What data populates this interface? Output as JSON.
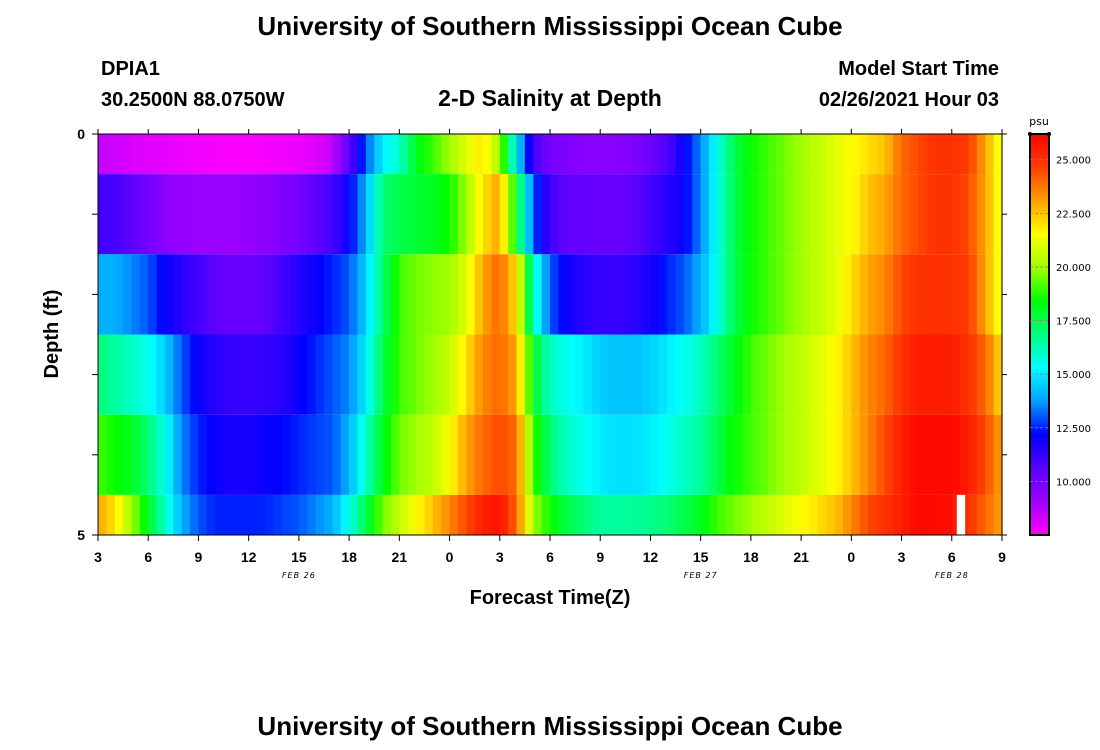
{
  "page": {
    "title": "University of Southern Mississippi Ocean Cube",
    "footer_title": "University of Southern Mississippi Ocean Cube",
    "station_id": "DPIA1",
    "station_coords": "30.2500N 88.0750W",
    "plot_title": "2-D Salinity at Depth",
    "model_start_label": "Model Start Time",
    "model_start_value": "02/26/2021 Hour 03"
  },
  "chart_data": {
    "type": "heatmap",
    "title": "2-D Salinity at Depth",
    "xlabel": "Forecast Time(Z)",
    "ylabel": "Depth (ft)",
    "x_ticks": [
      "3",
      "6",
      "9",
      "12",
      "15",
      "18",
      "21",
      "0",
      "3",
      "6",
      "9",
      "12",
      "15",
      "18",
      "21",
      "0",
      "3",
      "6",
      "9"
    ],
    "x_tick_hours": [
      0,
      3,
      6,
      9,
      12,
      15,
      18,
      21,
      24,
      27,
      30,
      33,
      36,
      39,
      42,
      45,
      48,
      51,
      54
    ],
    "xlim": [
      0,
      54
    ],
    "date_labels": [
      {
        "text": "FEB 26",
        "hour": 12
      },
      {
        "text": "FEB 27",
        "hour": 36
      },
      {
        "text": "FEB 28",
        "hour": 51
      }
    ],
    "y_ticks": [
      "0",
      "5"
    ],
    "ylim": [
      0,
      5
    ],
    "colorbar": {
      "unit": "psu",
      "min": 7.5,
      "max": 26.2,
      "ticks": [
        "25.000",
        "22.500",
        "20.000",
        "17.500",
        "15.000",
        "12.500",
        "10.000"
      ],
      "tick_values": [
        25,
        22.5,
        20,
        17.5,
        15,
        12.5,
        10
      ],
      "palette": [
        "#ff00ff",
        "#a000ff",
        "#5a00ff",
        "#0000ff",
        "#00a0ff",
        "#00ffff",
        "#00ff80",
        "#00ff00",
        "#a0ff00",
        "#ffff00",
        "#ffa000",
        "#ff4000",
        "#ff0000"
      ]
    },
    "key_hours": [
      0,
      1,
      2,
      3,
      4,
      5,
      6,
      7,
      8,
      9,
      10,
      11,
      12,
      13,
      14,
      15,
      16,
      17,
      18,
      19,
      20,
      21,
      22,
      23,
      24,
      25,
      26,
      27,
      28,
      29,
      30,
      31,
      32,
      33,
      34,
      35,
      36,
      37,
      38,
      39,
      40,
      41,
      42,
      43,
      44,
      45,
      46,
      47,
      48,
      49,
      50,
      51,
      52,
      53,
      54
    ],
    "layers": [
      {
        "depth_top": 0,
        "depth_bottom": 0.5,
        "values": [
          8.5,
          8.3,
          8.1,
          8.0,
          7.9,
          7.8,
          7.7,
          7.6,
          7.6,
          7.6,
          7.6,
          7.7,
          7.8,
          8.0,
          8.5,
          10.5,
          13,
          15,
          16,
          18,
          19,
          20,
          21,
          22,
          20,
          15,
          11,
          10,
          9.8,
          9.6,
          9.6,
          9.6,
          9.8,
          10.2,
          10.8,
          12,
          13.5,
          15.5,
          17.5,
          18.5,
          19,
          19.5,
          20,
          20.5,
          21,
          21.5,
          22,
          22.5,
          24,
          24.5,
          25,
          25,
          24.8,
          23,
          21
        ]
      },
      {
        "depth_top": 0.5,
        "depth_bottom": 1.5,
        "values": [
          11,
          11,
          10.5,
          10,
          9.5,
          9.3,
          9.2,
          9.2,
          9.2,
          9.3,
          9.5,
          9.8,
          10,
          10.5,
          11,
          12,
          14,
          17,
          17.5,
          17.8,
          18,
          18.5,
          20,
          22,
          23,
          18,
          13,
          11,
          10.5,
          10.4,
          10.3,
          10.3,
          10.5,
          11,
          11.5,
          12,
          13.5,
          15.5,
          17.5,
          18.5,
          19,
          19.5,
          20,
          20.5,
          21,
          21.5,
          22.5,
          23,
          24,
          24.5,
          25,
          25,
          24.5,
          23,
          21
        ]
      },
      {
        "depth_top": 1.5,
        "depth_bottom": 2.5,
        "values": [
          14,
          14,
          13.5,
          13,
          12,
          11.5,
          11,
          10.5,
          10.3,
          10.3,
          10.5,
          11,
          11.5,
          12,
          12.5,
          13,
          14.5,
          17,
          19,
          19.5,
          19.8,
          20,
          21,
          23,
          24,
          22,
          16,
          13,
          12,
          11.5,
          11.2,
          11.2,
          11.4,
          11.8,
          12.5,
          13,
          14,
          15.5,
          17.5,
          18.5,
          19,
          19.5,
          20,
          20.5,
          21,
          22,
          23,
          23.5,
          24.5,
          25,
          25,
          25,
          24.8,
          23,
          21
        ]
      },
      {
        "depth_top": 2.5,
        "depth_bottom": 3.5,
        "values": [
          17,
          16.5,
          16,
          15.5,
          14.5,
          13,
          12,
          11.5,
          11.2,
          11.2,
          11.3,
          11.5,
          12,
          12.5,
          13,
          13.5,
          15,
          17.5,
          19,
          19.5,
          20,
          20.5,
          22,
          23.5,
          24,
          23,
          18,
          16,
          15.5,
          15,
          14.5,
          14.3,
          14.3,
          14.5,
          15,
          15.5,
          16,
          17,
          18,
          19,
          19.5,
          20,
          20.5,
          21,
          21.5,
          22.5,
          23.5,
          24,
          25,
          25.5,
          25.5,
          25.5,
          25,
          24,
          22
        ]
      },
      {
        "depth_top": 3.5,
        "depth_bottom": 4.5,
        "values": [
          19,
          18.5,
          18,
          17,
          15.5,
          13.5,
          12.5,
          12,
          11.8,
          11.8,
          12,
          12.2,
          12.5,
          12.8,
          13,
          14,
          16,
          18,
          19.5,
          20,
          20.5,
          21.5,
          23,
          24,
          24.5,
          24,
          19,
          17,
          16,
          15.5,
          15,
          14.8,
          14.8,
          15,
          15.5,
          16,
          16.5,
          17.5,
          18.5,
          19,
          19.5,
          20,
          20.5,
          21,
          21.5,
          22.5,
          23.5,
          24.5,
          25.5,
          26,
          26,
          26,
          25.5,
          24.5,
          23
        ]
      },
      {
        "depth_top": 4.5,
        "depth_bottom": 5,
        "values": [
          23,
          22,
          20,
          18,
          16,
          14,
          13,
          12.5,
          12.5,
          12.5,
          12.5,
          12.8,
          13,
          13.5,
          14,
          15.5,
          17.5,
          19.5,
          20.5,
          21.5,
          22.5,
          23.5,
          24.5,
          25.5,
          25.8,
          24,
          20,
          18.5,
          17.5,
          17,
          16.5,
          16.5,
          16.5,
          16.7,
          17,
          17.5,
          18,
          19,
          19.5,
          20,
          20.5,
          21,
          21.5,
          22,
          22.5,
          23.5,
          24.5,
          25,
          25.5,
          26,
          26,
          25.8,
          25,
          24,
          23
        ]
      }
    ],
    "missing_cells": [
      {
        "hour_start": 51.3,
        "hour_end": 51.8,
        "depth_top": 4.5,
        "depth_bottom": 5
      }
    ]
  }
}
